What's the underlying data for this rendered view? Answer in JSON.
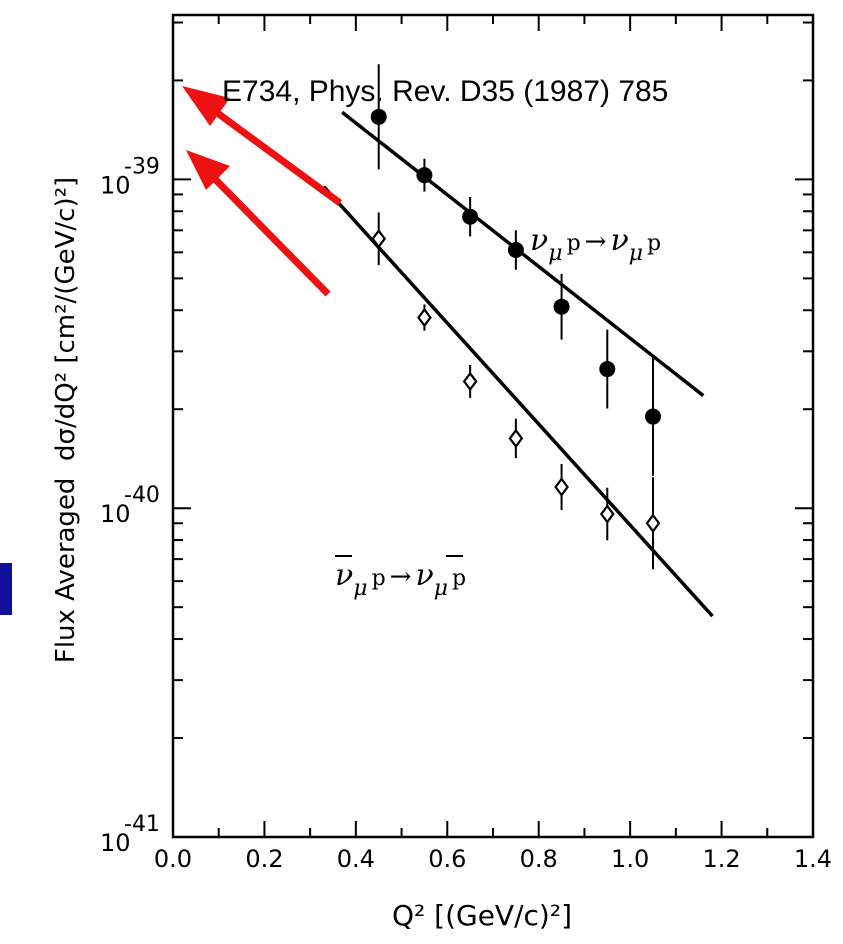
{
  "chart_data": {
    "type": "scatter",
    "title": "",
    "ylabel": "Flux Averaged  dσ/dQ² [cm²/(GeV/c)²]",
    "xlabel": "Q² [(GeV/c)²]",
    "xlim": [
      0.0,
      1.4
    ],
    "ylim_log10": [
      -41,
      -38.5
    ],
    "y_scale": "log",
    "x_tick_labels": [
      "0.0",
      "0.2",
      "0.4",
      "0.6",
      "0.8",
      "1.0",
      "1.2",
      "1.4"
    ],
    "y_tick_labels": [
      {
        "base": "10",
        "exp": "-39"
      },
      {
        "base": "10",
        "exp": "-40"
      },
      {
        "base": "10",
        "exp": "-41"
      }
    ],
    "series": [
      {
        "name": "ν_μ p → ν_μ p",
        "marker": "filled-circle",
        "x": [
          0.45,
          0.55,
          0.65,
          0.75,
          0.85,
          0.95,
          1.05
        ],
        "y": [
          1.55e-39,
          1.03e-39,
          7.7e-40,
          6.1e-40,
          4.1e-40,
          2.65e-40,
          1.9e-40
        ],
        "err_log10": [
          0.16,
          0.05,
          0.06,
          0.06,
          0.1,
          0.12,
          0.18
        ],
        "fit_x": [
          0.37,
          1.16
        ],
        "fit_y": [
          1.6e-39,
          2.2e-40
        ]
      },
      {
        "name": "ν̄_μ p → ν̄_μ p",
        "marker": "open-diamond",
        "x": [
          0.45,
          0.55,
          0.65,
          0.75,
          0.85,
          0.95,
          1.05
        ],
        "y": [
          6.6e-40,
          3.8e-40,
          2.43e-40,
          1.63e-40,
          1.16e-40,
          9.6e-41,
          9e-41
        ],
        "err_log10": [
          0.08,
          0.04,
          0.05,
          0.06,
          0.07,
          0.08,
          0.14
        ],
        "fit_x": [
          0.33,
          1.18
        ],
        "fit_y": [
          9.5e-40,
          4.7e-41
        ]
      }
    ],
    "process_labels": {
      "nu": {
        "nu1": "ν",
        "sub1": "μ",
        "p1": "p",
        "arrow": "→",
        "nu2": "ν",
        "sub2": "μ",
        "p2": "p"
      },
      "nubar": {
        "nu1": "ν",
        "sub1": "μ",
        "p1": "p",
        "arrow": "→",
        "nu2": "ν",
        "sub2": "μ",
        "p2": "p"
      }
    },
    "annotation": {
      "text": "E734, Phys. Rev. D35 (1987) 785",
      "arrow_color": "#ee1111"
    },
    "grid": false,
    "legend": "none"
  },
  "colors": {
    "ink": "#000000",
    "arrow": "#ee1111",
    "edge_block": "#10109a"
  }
}
